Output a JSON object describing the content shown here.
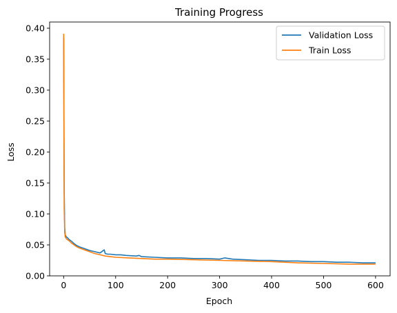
{
  "chart_data": {
    "type": "line",
    "title": "Training Progress",
    "xlabel": "Epoch",
    "ylabel": "Loss",
    "xlim": [
      -27,
      628
    ],
    "ylim": [
      0,
      0.41
    ],
    "xticks": [
      0,
      100,
      200,
      300,
      400,
      500,
      600
    ],
    "xtick_labels": [
      "0",
      "100",
      "200",
      "300",
      "400",
      "500",
      "600"
    ],
    "yticks": [
      0.0,
      0.05,
      0.1,
      0.15,
      0.2,
      0.25,
      0.3,
      0.35,
      0.4
    ],
    "ytick_labels": [
      "0.00",
      "0.05",
      "0.10",
      "0.15",
      "0.20",
      "0.25",
      "0.30",
      "0.35",
      "0.40"
    ],
    "grid": false,
    "legend_position": "top-right",
    "series": [
      {
        "name": "Validation Loss",
        "color": "#1f77b4",
        "x": [
          0,
          1,
          2,
          3,
          5,
          8,
          10,
          15,
          20,
          25,
          30,
          40,
          50,
          60,
          70,
          78,
          80,
          85,
          90,
          100,
          110,
          120,
          140,
          145,
          150,
          175,
          200,
          225,
          250,
          275,
          300,
          310,
          325,
          350,
          375,
          400,
          425,
          450,
          475,
          500,
          525,
          550,
          575,
          600
        ],
        "y": [
          0.385,
          0.14,
          0.078,
          0.066,
          0.063,
          0.061,
          0.059,
          0.056,
          0.052,
          0.049,
          0.047,
          0.044,
          0.041,
          0.039,
          0.037,
          0.042,
          0.036,
          0.035,
          0.035,
          0.034,
          0.034,
          0.033,
          0.032,
          0.033,
          0.031,
          0.03,
          0.029,
          0.029,
          0.028,
          0.028,
          0.027,
          0.029,
          0.027,
          0.026,
          0.025,
          0.025,
          0.024,
          0.024,
          0.023,
          0.023,
          0.022,
          0.022,
          0.021,
          0.021
        ]
      },
      {
        "name": "Train Loss",
        "color": "#ff7f0e",
        "x": [
          0,
          1,
          2,
          3,
          5,
          8,
          10,
          15,
          20,
          25,
          30,
          40,
          50,
          60,
          70,
          80,
          90,
          100,
          125,
          150,
          175,
          200,
          250,
          300,
          350,
          400,
          450,
          500,
          550,
          600
        ],
        "y": [
          0.391,
          0.11,
          0.07,
          0.063,
          0.06,
          0.058,
          0.057,
          0.053,
          0.05,
          0.047,
          0.045,
          0.042,
          0.039,
          0.036,
          0.034,
          0.032,
          0.031,
          0.03,
          0.029,
          0.028,
          0.027,
          0.027,
          0.026,
          0.025,
          0.024,
          0.023,
          0.021,
          0.02,
          0.019,
          0.019
        ]
      }
    ]
  }
}
